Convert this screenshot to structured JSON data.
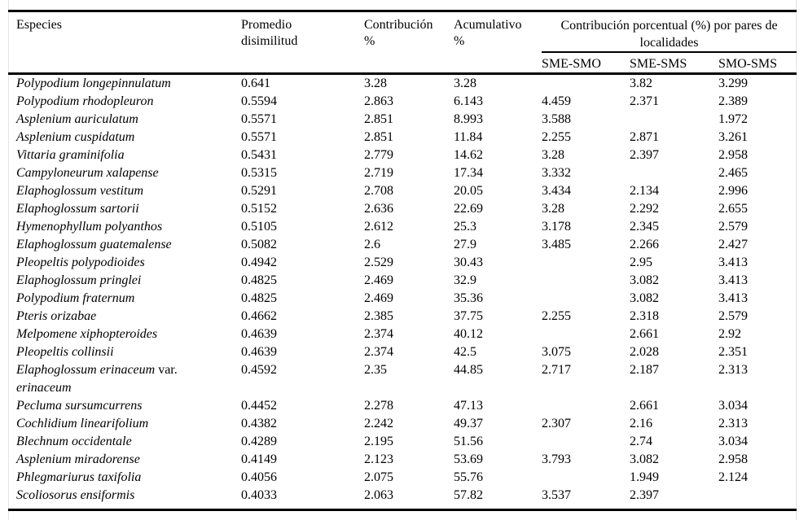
{
  "page": {
    "background": "#ffffff",
    "text_color": "#000000",
    "rule_color": "#000000",
    "gridline_color": "#e4e4e4"
  },
  "table": {
    "columns": {
      "especies": "Especies",
      "promedio_lines": [
        "Promedio",
        "disimilitud"
      ],
      "contribucion_lines": [
        "Contribución",
        "%"
      ],
      "acumulativo_lines": [
        "Acumulativo",
        "%"
      ],
      "spanner": "Contribución porcentual (%) por pares de localidades",
      "pairs": [
        "SME-SMO",
        "SME-SMS",
        "SMO-SMS"
      ]
    },
    "rows": [
      {
        "species": "Polypodium longepinnulatum",
        "dissimilarity": "0.641",
        "contribution": "3.28",
        "cumulative": "3.28",
        "sme_smo": "",
        "sme_sms": "3.82",
        "smo_sms": "3.299"
      },
      {
        "species": "Polypodium rhodopleuron",
        "dissimilarity": "0.5594",
        "contribution": "2.863",
        "cumulative": "6.143",
        "sme_smo": "4.459",
        "sme_sms": "2.371",
        "smo_sms": "2.389"
      },
      {
        "species": "Asplenium auriculatum",
        "dissimilarity": "0.5571",
        "contribution": "2.851",
        "cumulative": "8.993",
        "sme_smo": "3.588",
        "sme_sms": "",
        "smo_sms": "1.972"
      },
      {
        "species": "Asplenium cuspidatum",
        "dissimilarity": "0.5571",
        "contribution": "2.851",
        "cumulative": "11.84",
        "sme_smo": "2.255",
        "sme_sms": "2.871",
        "smo_sms": "3.261"
      },
      {
        "species": "Vittaria graminifolia",
        "dissimilarity": "0.5431",
        "contribution": "2.779",
        "cumulative": "14.62",
        "sme_smo": "3.28",
        "sme_sms": "2.397",
        "smo_sms": "2.958"
      },
      {
        "species": "Campyloneurum xalapense",
        "dissimilarity": "0.5315",
        "contribution": "2.719",
        "cumulative": "17.34",
        "sme_smo": "3.332",
        "sme_sms": "",
        "smo_sms": "2.465"
      },
      {
        "species": "Elaphoglossum vestitum",
        "dissimilarity": "0.5291",
        "contribution": "2.708",
        "cumulative": "20.05",
        "sme_smo": "3.434",
        "sme_sms": "2.134",
        "smo_sms": "2.996"
      },
      {
        "species": "Elaphoglossum sartorii",
        "dissimilarity": "0.5152",
        "contribution": "2.636",
        "cumulative": "22.69",
        "sme_smo": "3.28",
        "sme_sms": "2.292",
        "smo_sms": "2.655"
      },
      {
        "species": "Hymenophyllum polyanthos",
        "dissimilarity": "0.5105",
        "contribution": "2.612",
        "cumulative": "25.3",
        "sme_smo": "3.178",
        "sme_sms": "2.345",
        "smo_sms": "2.579"
      },
      {
        "species": "Elaphoglossum guatemalense",
        "dissimilarity": "0.5082",
        "contribution": "2.6",
        "cumulative": "27.9",
        "sme_smo": "3.485",
        "sme_sms": "2.266",
        "smo_sms": "2.427"
      },
      {
        "species": "Pleopeltis polypodioides",
        "dissimilarity": "0.4942",
        "contribution": "2.529",
        "cumulative": "30.43",
        "sme_smo": "",
        "sme_sms": "2.95",
        "smo_sms": "3.413"
      },
      {
        "species": "Elaphoglossum pringlei",
        "dissimilarity": "0.4825",
        "contribution": "2.469",
        "cumulative": "32.9",
        "sme_smo": "",
        "sme_sms": "3.082",
        "smo_sms": "3.413"
      },
      {
        "species": "Polypodium fraternum",
        "dissimilarity": "0.4825",
        "contribution": "2.469",
        "cumulative": "35.36",
        "sme_smo": "",
        "sme_sms": "3.082",
        "smo_sms": "3.413"
      },
      {
        "species": "Pteris orizabae",
        "dissimilarity": "0.4662",
        "contribution": "2.385",
        "cumulative": "37.75",
        "sme_smo": "2.255",
        "sme_sms": "2.318",
        "smo_sms": "2.579"
      },
      {
        "species": "Melpomene xiphopteroides",
        "dissimilarity": "0.4639",
        "contribution": "2.374",
        "cumulative": "40.12",
        "sme_smo": "",
        "sme_sms": "2.661",
        "smo_sms": "2.92"
      },
      {
        "species": "Pleopeltis collinsii",
        "dissimilarity": "0.4639",
        "contribution": "2.374",
        "cumulative": "42.5",
        "sme_smo": "3.075",
        "sme_sms": "2.028",
        "smo_sms": "2.351"
      },
      {
        "species": "Elaphoglossum erinaceum",
        "var_label": "var.",
        "species2": "erinaceum",
        "dissimilarity": "0.4592",
        "contribution": "2.35",
        "cumulative": "44.85",
        "sme_smo": "2.717",
        "sme_sms": "2.187",
        "smo_sms": "2.313"
      },
      {
        "species": "Pecluma sursumcurrens",
        "dissimilarity": "0.4452",
        "contribution": "2.278",
        "cumulative": "47.13",
        "sme_smo": "",
        "sme_sms": "2.661",
        "smo_sms": "3.034"
      },
      {
        "species": "Cochlidium linearifolium",
        "dissimilarity": "0.4382",
        "contribution": "2.242",
        "cumulative": "49.37",
        "sme_smo": "2.307",
        "sme_sms": "2.16",
        "smo_sms": "2.313"
      },
      {
        "species": "Blechnum occidentale",
        "dissimilarity": "0.4289",
        "contribution": "2.195",
        "cumulative": "51.56",
        "sme_smo": "",
        "sme_sms": "2.74",
        "smo_sms": "3.034"
      },
      {
        "species": "Asplenium miradorense",
        "dissimilarity": "0.4149",
        "contribution": "2.123",
        "cumulative": "53.69",
        "sme_smo": "3.793",
        "sme_sms": "3.082",
        "smo_sms": "2.958"
      },
      {
        "species": "Phlegmariurus taxifolia",
        "dissimilarity": "0.4056",
        "contribution": "2.075",
        "cumulative": "55.76",
        "sme_smo": "",
        "sme_sms": "1.949",
        "smo_sms": "2.124"
      },
      {
        "species": "Scoliosorus ensiformis",
        "dissimilarity": "0.4033",
        "contribution": "2.063",
        "cumulative": "57.82",
        "sme_smo": "3.537",
        "sme_sms": "2.397",
        "smo_sms": ""
      }
    ]
  }
}
